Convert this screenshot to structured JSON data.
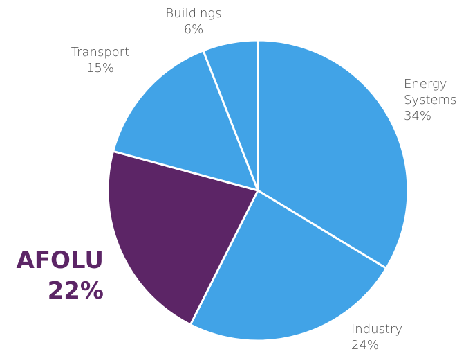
{
  "chart_data": {
    "type": "pie",
    "categories": [
      "Energy Systems",
      "Industry",
      "AFOLU",
      "Transport",
      "Buildings"
    ],
    "values": [
      34,
      24,
      22,
      15,
      6
    ],
    "value_labels": [
      "34%",
      "24%",
      "22%",
      "15%",
      "6%"
    ],
    "colors": [
      "#41a3e7",
      "#41a3e7",
      "#5c2566",
      "#41a3e7",
      "#41a3e7"
    ]
  }
}
